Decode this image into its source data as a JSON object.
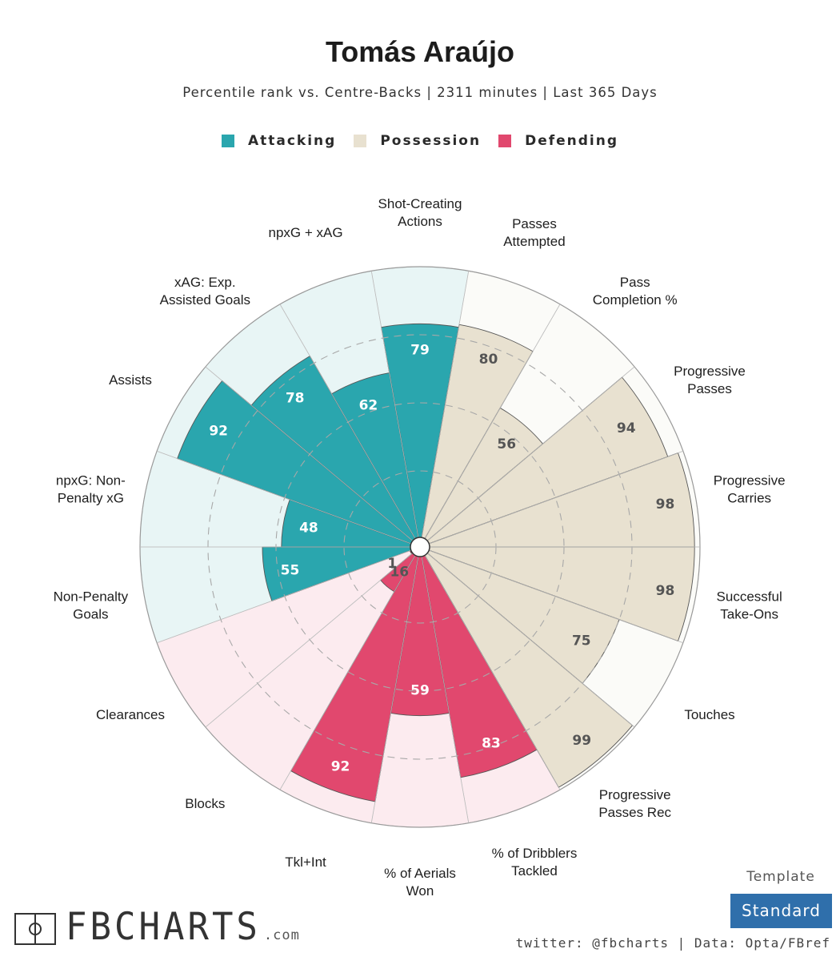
{
  "header": {
    "title": "Tomás Araújo",
    "subtitle": "Percentile rank vs. Centre-Backs | 2311 minutes | Last 365 Days"
  },
  "legend": [
    {
      "label": "Attacking",
      "color": "#2aa6ae"
    },
    {
      "label": "Possession",
      "color": "#e8e1d0"
    },
    {
      "label": "Defending",
      "color": "#e1486e"
    }
  ],
  "colors": {
    "attacking_fill": "#2aa6ae",
    "attacking_bg": "#e8f5f5",
    "possession_fill": "#e8e1d0",
    "possession_bg": "#fbfbf8",
    "defending_fill": "#e1486e",
    "defending_bg": "#fcebef"
  },
  "chart_data": {
    "type": "radar-bar",
    "scale_max": 100,
    "categories": [
      {
        "label": [
          "Shot-Creating",
          "Actions"
        ],
        "value": 79,
        "group": "Attacking"
      },
      {
        "label": [
          "Passes",
          "Attempted"
        ],
        "value": 80,
        "group": "Possession"
      },
      {
        "label": [
          "Pass",
          "Completion %"
        ],
        "value": 56,
        "group": "Possession"
      },
      {
        "label": [
          "Progressive",
          "Passes"
        ],
        "value": 94,
        "group": "Possession"
      },
      {
        "label": [
          "Progressive",
          "Carries"
        ],
        "value": 98,
        "group": "Possession"
      },
      {
        "label": [
          "Successful",
          "Take-Ons"
        ],
        "value": 98,
        "group": "Possession"
      },
      {
        "label": [
          "Touches"
        ],
        "value": 75,
        "group": "Possession"
      },
      {
        "label": [
          "Progressive",
          "Passes Rec"
        ],
        "value": 99,
        "group": "Possession"
      },
      {
        "label": [
          "% of Dribblers",
          "Tackled"
        ],
        "value": 83,
        "group": "Defending"
      },
      {
        "label": [
          "% of Aerials",
          "Won"
        ],
        "value": 59,
        "group": "Defending"
      },
      {
        "label": [
          "Tkl+Int"
        ],
        "value": 92,
        "group": "Defending"
      },
      {
        "label": [
          "Blocks"
        ],
        "value": 16,
        "group": "Defending"
      },
      {
        "label": [
          "Clearances"
        ],
        "value": 1,
        "group": "Defending"
      },
      {
        "label": [
          "Non-Penalty",
          "Goals"
        ],
        "value": 55,
        "group": "Attacking"
      },
      {
        "label": [
          "npxG: Non-",
          "Penalty xG"
        ],
        "value": 48,
        "group": "Attacking"
      },
      {
        "label": [
          "Assists"
        ],
        "value": 92,
        "group": "Attacking"
      },
      {
        "label": [
          "xAG: Exp.",
          "Assisted Goals"
        ],
        "value": 78,
        "group": "Attacking"
      },
      {
        "label": [
          "npxG + xAG"
        ],
        "value": 62,
        "group": "Attacking"
      }
    ]
  },
  "footer": {
    "template_caption": "Template",
    "template_name": "Standard",
    "credit": "twitter: @fbcharts | Data: Opta/FBref",
    "logo_text": "FBCHARTS",
    "logo_suffix": ".com"
  }
}
